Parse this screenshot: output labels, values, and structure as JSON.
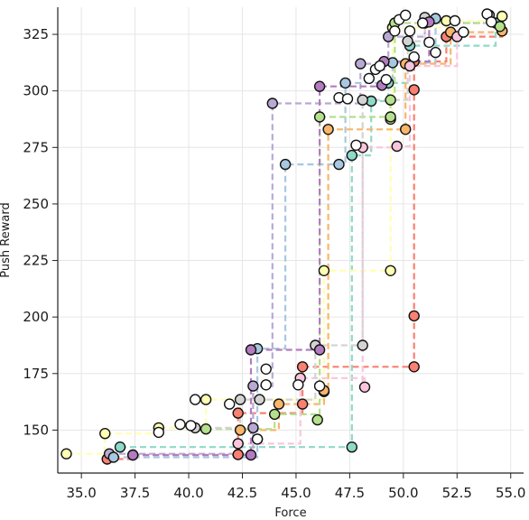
{
  "chart_data": {
    "type": "scatter",
    "title": "",
    "xlabel": "Force",
    "ylabel": "Push Reward",
    "xlim": [
      33.9,
      55.6
    ],
    "ylim": [
      131,
      337
    ],
    "grid": true,
    "x_ticks": [
      35.0,
      37.5,
      40.0,
      42.5,
      45.0,
      47.5,
      50.0,
      52.5,
      55.0
    ],
    "x_tick_labels": [
      "35.0",
      "37.5",
      "40.0",
      "42.5",
      "45.0",
      "47.5",
      "50.0",
      "52.5",
      "55.0"
    ],
    "y_ticks": [
      150,
      175,
      200,
      225,
      250,
      275,
      300,
      325
    ],
    "y_tick_labels": [
      "150",
      "175",
      "200",
      "225",
      "250",
      "275",
      "300",
      "325"
    ],
    "step_style": "dashed step lines connecting successive points, post-step",
    "series": [
      {
        "color": "#fa8072",
        "points": [
          [
            36.2,
            137.2
          ],
          [
            37.4,
            139.0
          ],
          [
            42.3,
            139.2
          ],
          [
            42.3,
            157.5
          ],
          [
            45.3,
            161.5
          ],
          [
            45.3,
            178.0
          ],
          [
            50.5,
            178.0
          ],
          [
            50.5,
            200.5
          ],
          [
            50.5,
            300.5
          ],
          [
            50.5,
            313.0
          ],
          [
            52.0,
            324.0
          ],
          [
            54.6,
            326.5
          ]
        ]
      },
      {
        "color": "#8fd9c8",
        "points": [
          [
            36.8,
            142.5
          ],
          [
            47.6,
            142.5
          ],
          [
            47.6,
            271.5
          ],
          [
            48.5,
            295.5
          ],
          [
            49.3,
            303.5
          ],
          [
            50.3,
            320.0
          ],
          [
            54.3,
            330.0
          ]
        ]
      },
      {
        "color": "#ffffb3",
        "points": [
          [
            34.3,
            139.5
          ],
          [
            36.1,
            148.5
          ],
          [
            38.6,
            151.0
          ],
          [
            40.8,
            163.5
          ],
          [
            46.3,
            167.0
          ],
          [
            46.3,
            220.5
          ],
          [
            49.4,
            220.5
          ],
          [
            49.4,
            287.5
          ],
          [
            49.5,
            328.0
          ],
          [
            52.0,
            331.0
          ],
          [
            54.6,
            333.0
          ]
        ]
      },
      {
        "color": "#b8a9d3",
        "points": [
          [
            36.3,
            139.5
          ],
          [
            43.0,
            151.0
          ],
          [
            43.0,
            169.5
          ],
          [
            43.9,
            294.5
          ],
          [
            48.0,
            312.0
          ],
          [
            49.3,
            324.0
          ],
          [
            51.0,
            330.0
          ],
          [
            54.0,
            333.5
          ]
        ]
      },
      {
        "color": "#a8c8e0",
        "points": [
          [
            36.5,
            138.0
          ],
          [
            43.2,
            146.0
          ],
          [
            43.2,
            186.0
          ],
          [
            44.5,
            267.5
          ],
          [
            47.0,
            267.5
          ],
          [
            47.3,
            303.5
          ],
          [
            49.5,
            312.5
          ],
          [
            51.5,
            332.0
          ]
        ]
      },
      {
        "color": "#f8b66a",
        "points": [
          [
            42.4,
            150.0
          ],
          [
            44.2,
            161.5
          ],
          [
            46.3,
            167.5
          ],
          [
            46.5,
            283.0
          ],
          [
            50.1,
            283.0
          ],
          [
            50.1,
            312.0
          ],
          [
            52.2,
            326.0
          ],
          [
            54.6,
            326.5
          ]
        ]
      },
      {
        "color": "#b5e08c",
        "points": [
          [
            40.8,
            150.5
          ],
          [
            44.0,
            157.0
          ],
          [
            46.0,
            154.5
          ],
          [
            46.1,
            288.5
          ],
          [
            49.4,
            288.5
          ],
          [
            49.4,
            296.0
          ],
          [
            49.6,
            330.0
          ],
          [
            54.5,
            328.5
          ]
        ]
      },
      {
        "color": "#f9c5dd",
        "points": [
          [
            42.3,
            144.0
          ],
          [
            45.2,
            173.0
          ],
          [
            48.2,
            169.0
          ],
          [
            48.1,
            275.0
          ],
          [
            49.7,
            275.5
          ],
          [
            50.3,
            311.0
          ],
          [
            52.5,
            324.0
          ]
        ]
      },
      {
        "color": "#d3d3d3",
        "points": [
          [
            40.3,
            151.0
          ],
          [
            42.4,
            163.5
          ],
          [
            43.3,
            163.5
          ],
          [
            45.9,
            187.5
          ],
          [
            48.1,
            187.5
          ],
          [
            48.1,
            296.0
          ],
          [
            50.2,
            322.0
          ],
          [
            51.0,
            332.5
          ]
        ]
      },
      {
        "color": "#b37cc0",
        "points": [
          [
            37.4,
            139.0
          ],
          [
            42.9,
            139.0
          ],
          [
            42.9,
            185.5
          ],
          [
            46.1,
            185.5
          ],
          [
            46.1,
            302.0
          ],
          [
            49.0,
            302.5
          ],
          [
            49.1,
            313.0
          ],
          [
            51.2,
            330.5
          ]
        ]
      }
    ],
    "extra_points": [
      [
        38.6,
        149.0
      ],
      [
        39.6,
        152.5
      ],
      [
        40.1,
        152.0
      ],
      [
        40.3,
        163.5
      ],
      [
        41.9,
        161.5
      ],
      [
        43.2,
        146.0
      ],
      [
        43.6,
        177.0
      ],
      [
        43.6,
        170.0
      ],
      [
        45.1,
        170.0
      ],
      [
        46.1,
        169.5
      ],
      [
        47.0,
        297.0
      ],
      [
        47.4,
        296.5
      ],
      [
        47.8,
        276.0
      ],
      [
        48.4,
        305.5
      ],
      [
        48.7,
        309.5
      ],
      [
        48.9,
        311.0
      ],
      [
        49.2,
        305.0
      ],
      [
        49.6,
        326.5
      ],
      [
        49.8,
        331.5
      ],
      [
        50.1,
        333.5
      ],
      [
        50.3,
        326.5
      ],
      [
        50.5,
        315.0
      ],
      [
        50.9,
        330.0
      ],
      [
        51.2,
        321.5
      ],
      [
        51.5,
        317.0
      ],
      [
        52.4,
        331.0
      ],
      [
        52.8,
        326.0
      ],
      [
        53.9,
        334.0
      ],
      [
        54.1,
        330.5
      ]
    ]
  }
}
